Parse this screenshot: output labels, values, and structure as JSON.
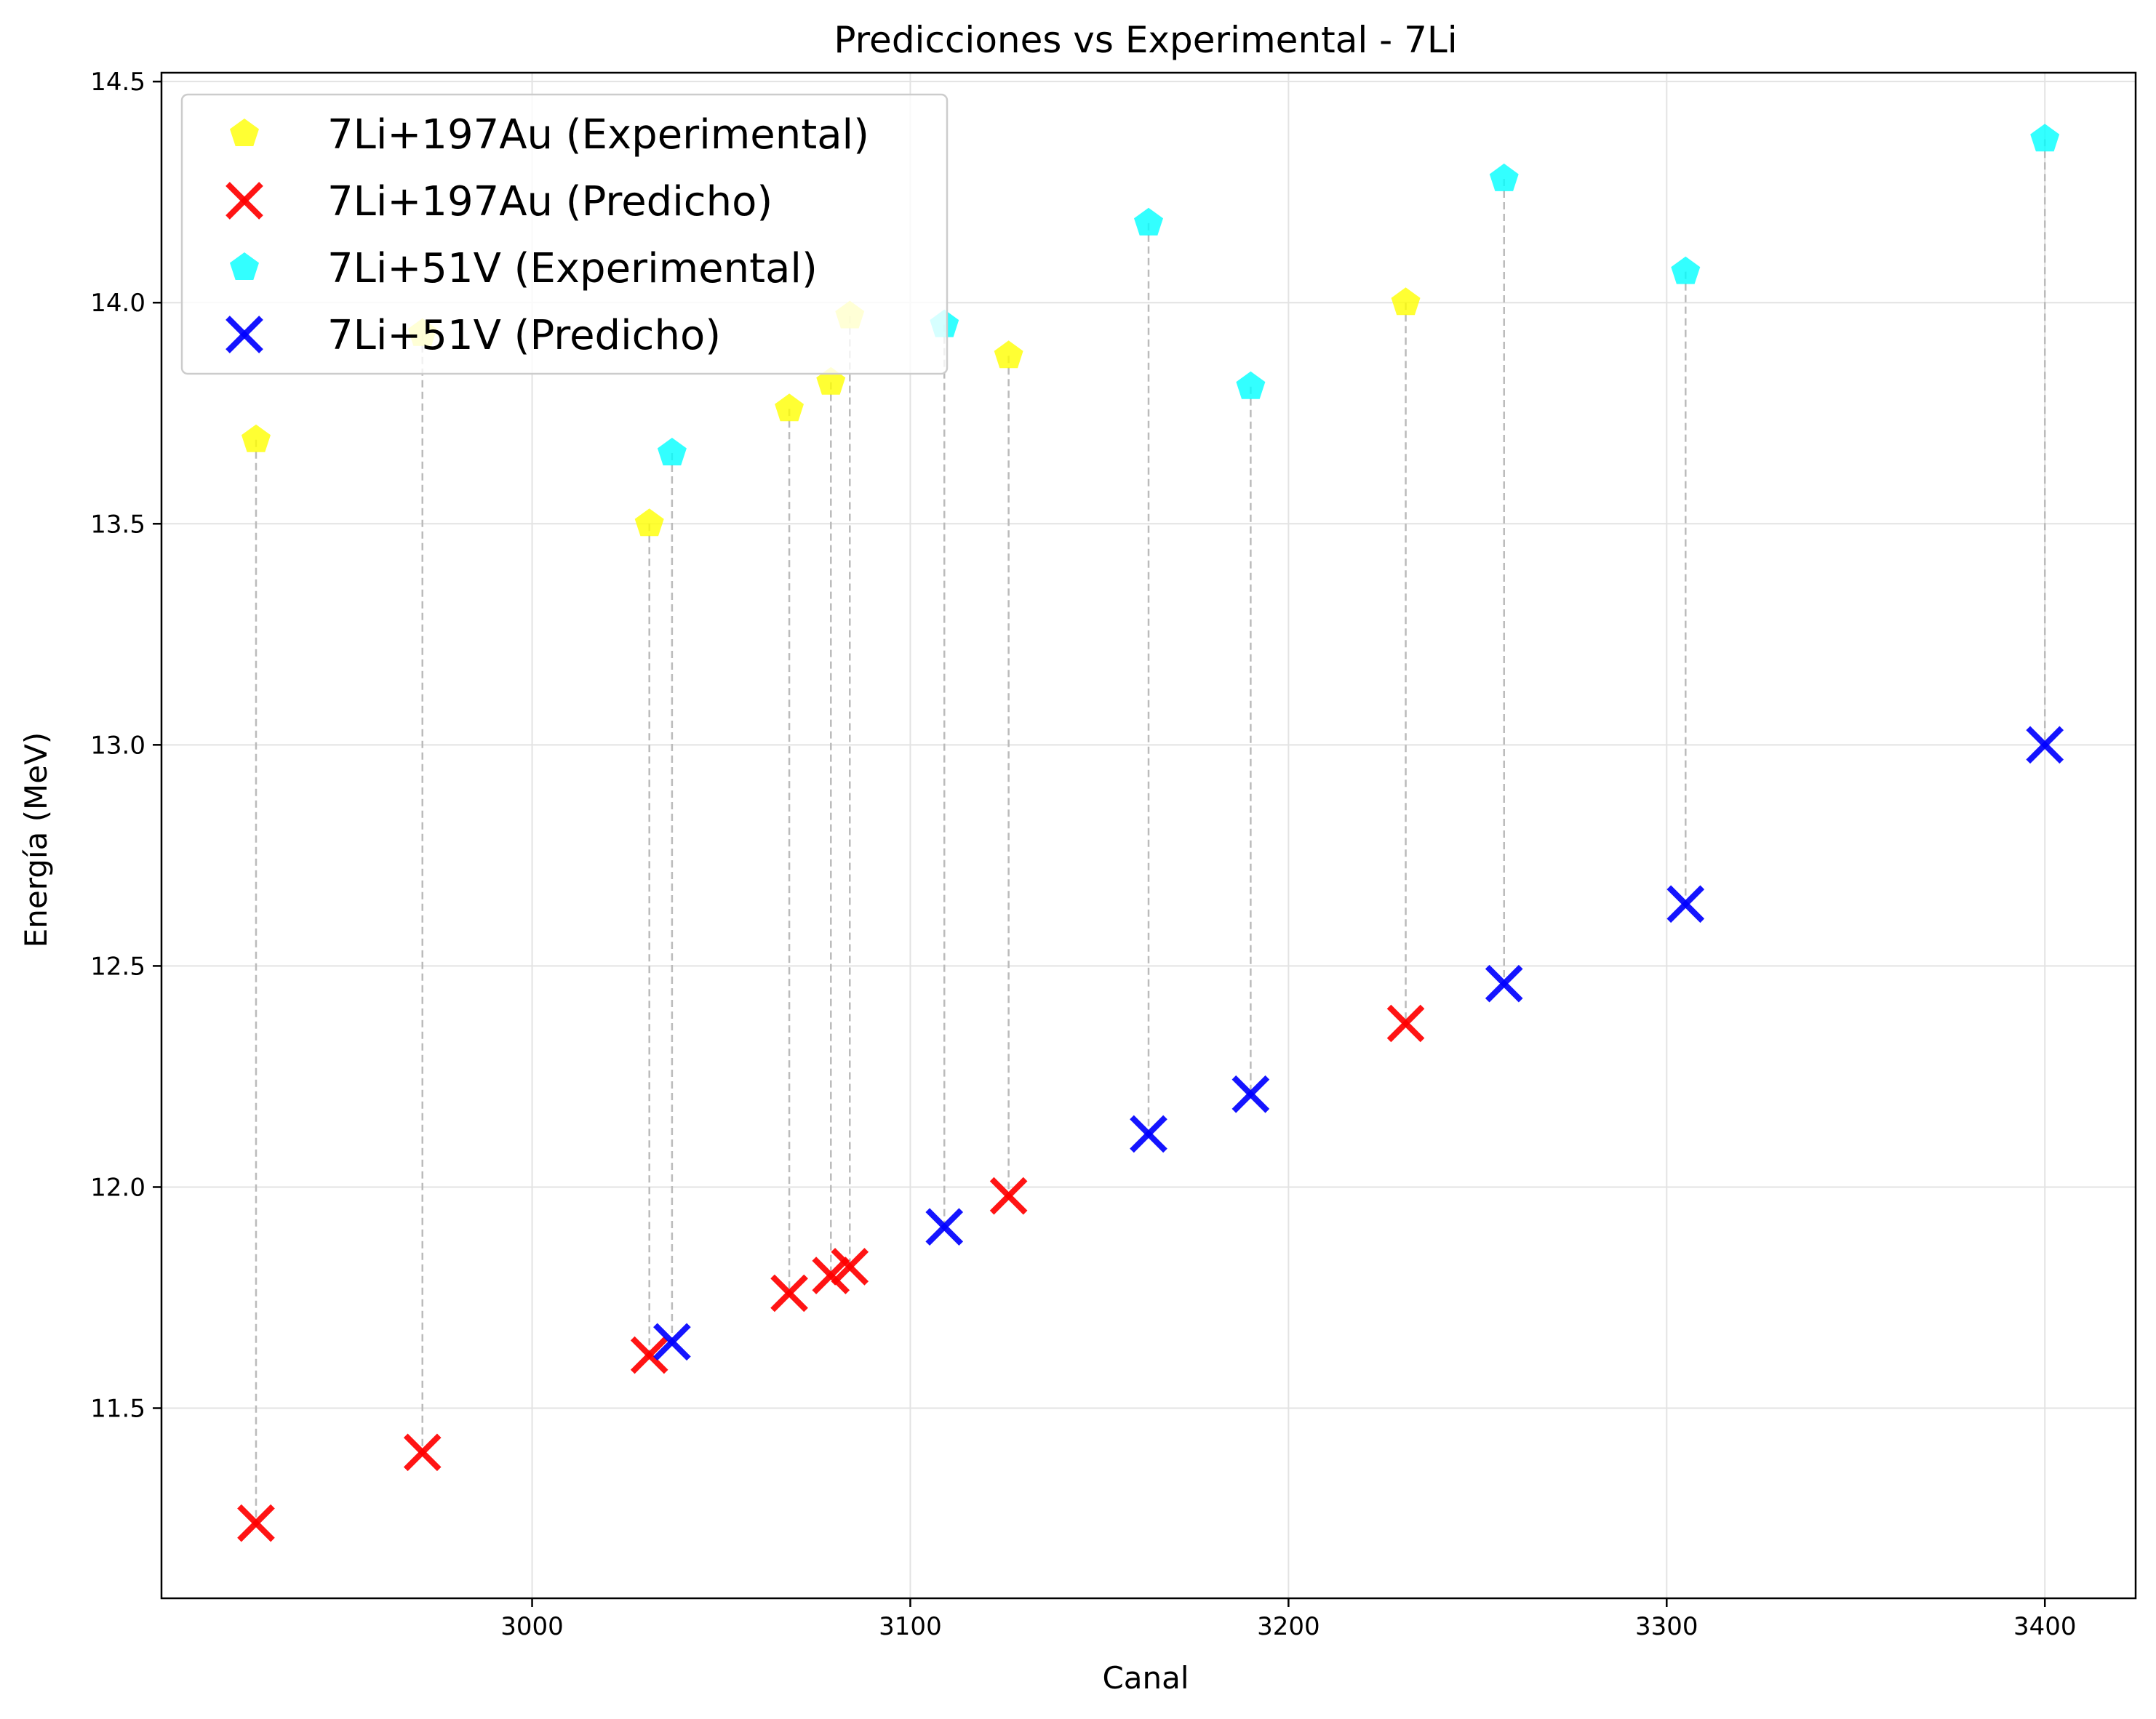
{
  "chart_data": {
    "type": "scatter",
    "title": "Predicciones vs Experimental - 7Li",
    "xlabel": "Canal",
    "ylabel": "Energía (MeV)",
    "xlim": [
      2902,
      3424
    ],
    "ylim": [
      11.07,
      14.52
    ],
    "xticks": [
      3000,
      3100,
      3200,
      3300,
      3400
    ],
    "yticks": [
      11.5,
      12.0,
      12.5,
      13.0,
      13.5,
      14.0,
      14.5
    ],
    "xtick_labels": [
      "3000",
      "3100",
      "3200",
      "3300",
      "3400"
    ],
    "ytick_labels": [
      "11.5",
      "12.0",
      "12.5",
      "13.0",
      "13.5",
      "14.0",
      "14.5"
    ],
    "grid": true,
    "legend_position": "top-left",
    "series": [
      {
        "name": "7Li+197Au (Experimental)",
        "marker": "pentagon",
        "color": "#ffff00",
        "x": [
          2927,
          2971,
          3031,
          3068,
          3079,
          3084,
          3126,
          3231
        ],
        "y": [
          13.69,
          13.93,
          13.5,
          13.76,
          13.82,
          13.97,
          13.88,
          14.0
        ]
      },
      {
        "name": "7Li+197Au (Predicho)",
        "marker": "x",
        "color": "#ff0000",
        "x": [
          2927,
          2971,
          3031,
          3068,
          3079,
          3084,
          3126,
          3231
        ],
        "y": [
          11.24,
          11.4,
          11.62,
          11.76,
          11.8,
          11.82,
          11.98,
          12.37
        ]
      },
      {
        "name": "7Li+51V (Experimental)",
        "marker": "pentagon",
        "color": "#00ffff",
        "x": [
          3037,
          3109,
          3163,
          3190,
          3257,
          3305,
          3400
        ],
        "y": [
          13.66,
          13.95,
          14.18,
          13.81,
          14.28,
          14.07,
          14.37
        ]
      },
      {
        "name": "7Li+51V (Predicho)",
        "marker": "x",
        "color": "#0000ff",
        "x": [
          3037,
          3109,
          3163,
          3190,
          3257,
          3305,
          3400
        ],
        "y": [
          11.65,
          11.91,
          12.12,
          12.21,
          12.46,
          12.64,
          13.0
        ]
      }
    ],
    "connectors": {
      "style": "dashed",
      "color": "#bbbbbb"
    }
  }
}
